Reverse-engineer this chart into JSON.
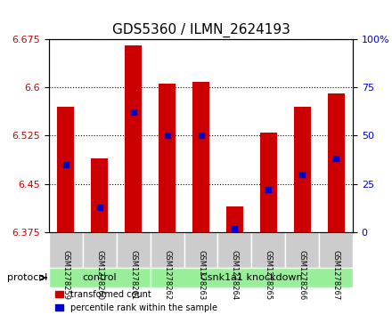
{
  "title": "GDS5360 / ILMN_2624193",
  "samples": [
    "GSM1278259",
    "GSM1278260",
    "GSM1278261",
    "GSM1278262",
    "GSM1278263",
    "GSM1278264",
    "GSM1278265",
    "GSM1278266",
    "GSM1278267"
  ],
  "red_bar_tops": [
    6.57,
    6.49,
    6.665,
    6.605,
    6.608,
    6.415,
    6.53,
    6.57,
    6.59
  ],
  "blue_markers_pct": [
    35,
    13,
    62,
    50,
    50,
    2,
    22,
    30,
    38
  ],
  "y_min": 6.375,
  "y_max": 6.675,
  "y_ticks": [
    6.375,
    6.45,
    6.525,
    6.6,
    6.675
  ],
  "right_y_ticks": [
    0,
    25,
    50,
    75,
    100
  ],
  "right_y_tick_labels": [
    "0",
    "25",
    "50",
    "75",
    "100%"
  ],
  "bar_color": "#cc0000",
  "blue_color": "#0000cc",
  "protocol_groups": [
    {
      "label": "control",
      "start": 0,
      "end": 2
    },
    {
      "label": "Csnk1a1 knockdown",
      "start": 3,
      "end": 8
    }
  ],
  "protocol_label": "protocol",
  "legend_items": [
    {
      "label": "transformed count",
      "color": "#cc0000"
    },
    {
      "label": "percentile rank within the sample",
      "color": "#0000cc"
    }
  ],
  "bar_width": 0.5,
  "title_fontsize": 11,
  "tick_fontsize": 8,
  "protocol_bg_color": "#99ee99",
  "sample_bg_color": "#cccccc",
  "grid_color": "#000000",
  "fig_width": 4.4,
  "fig_height": 3.63
}
